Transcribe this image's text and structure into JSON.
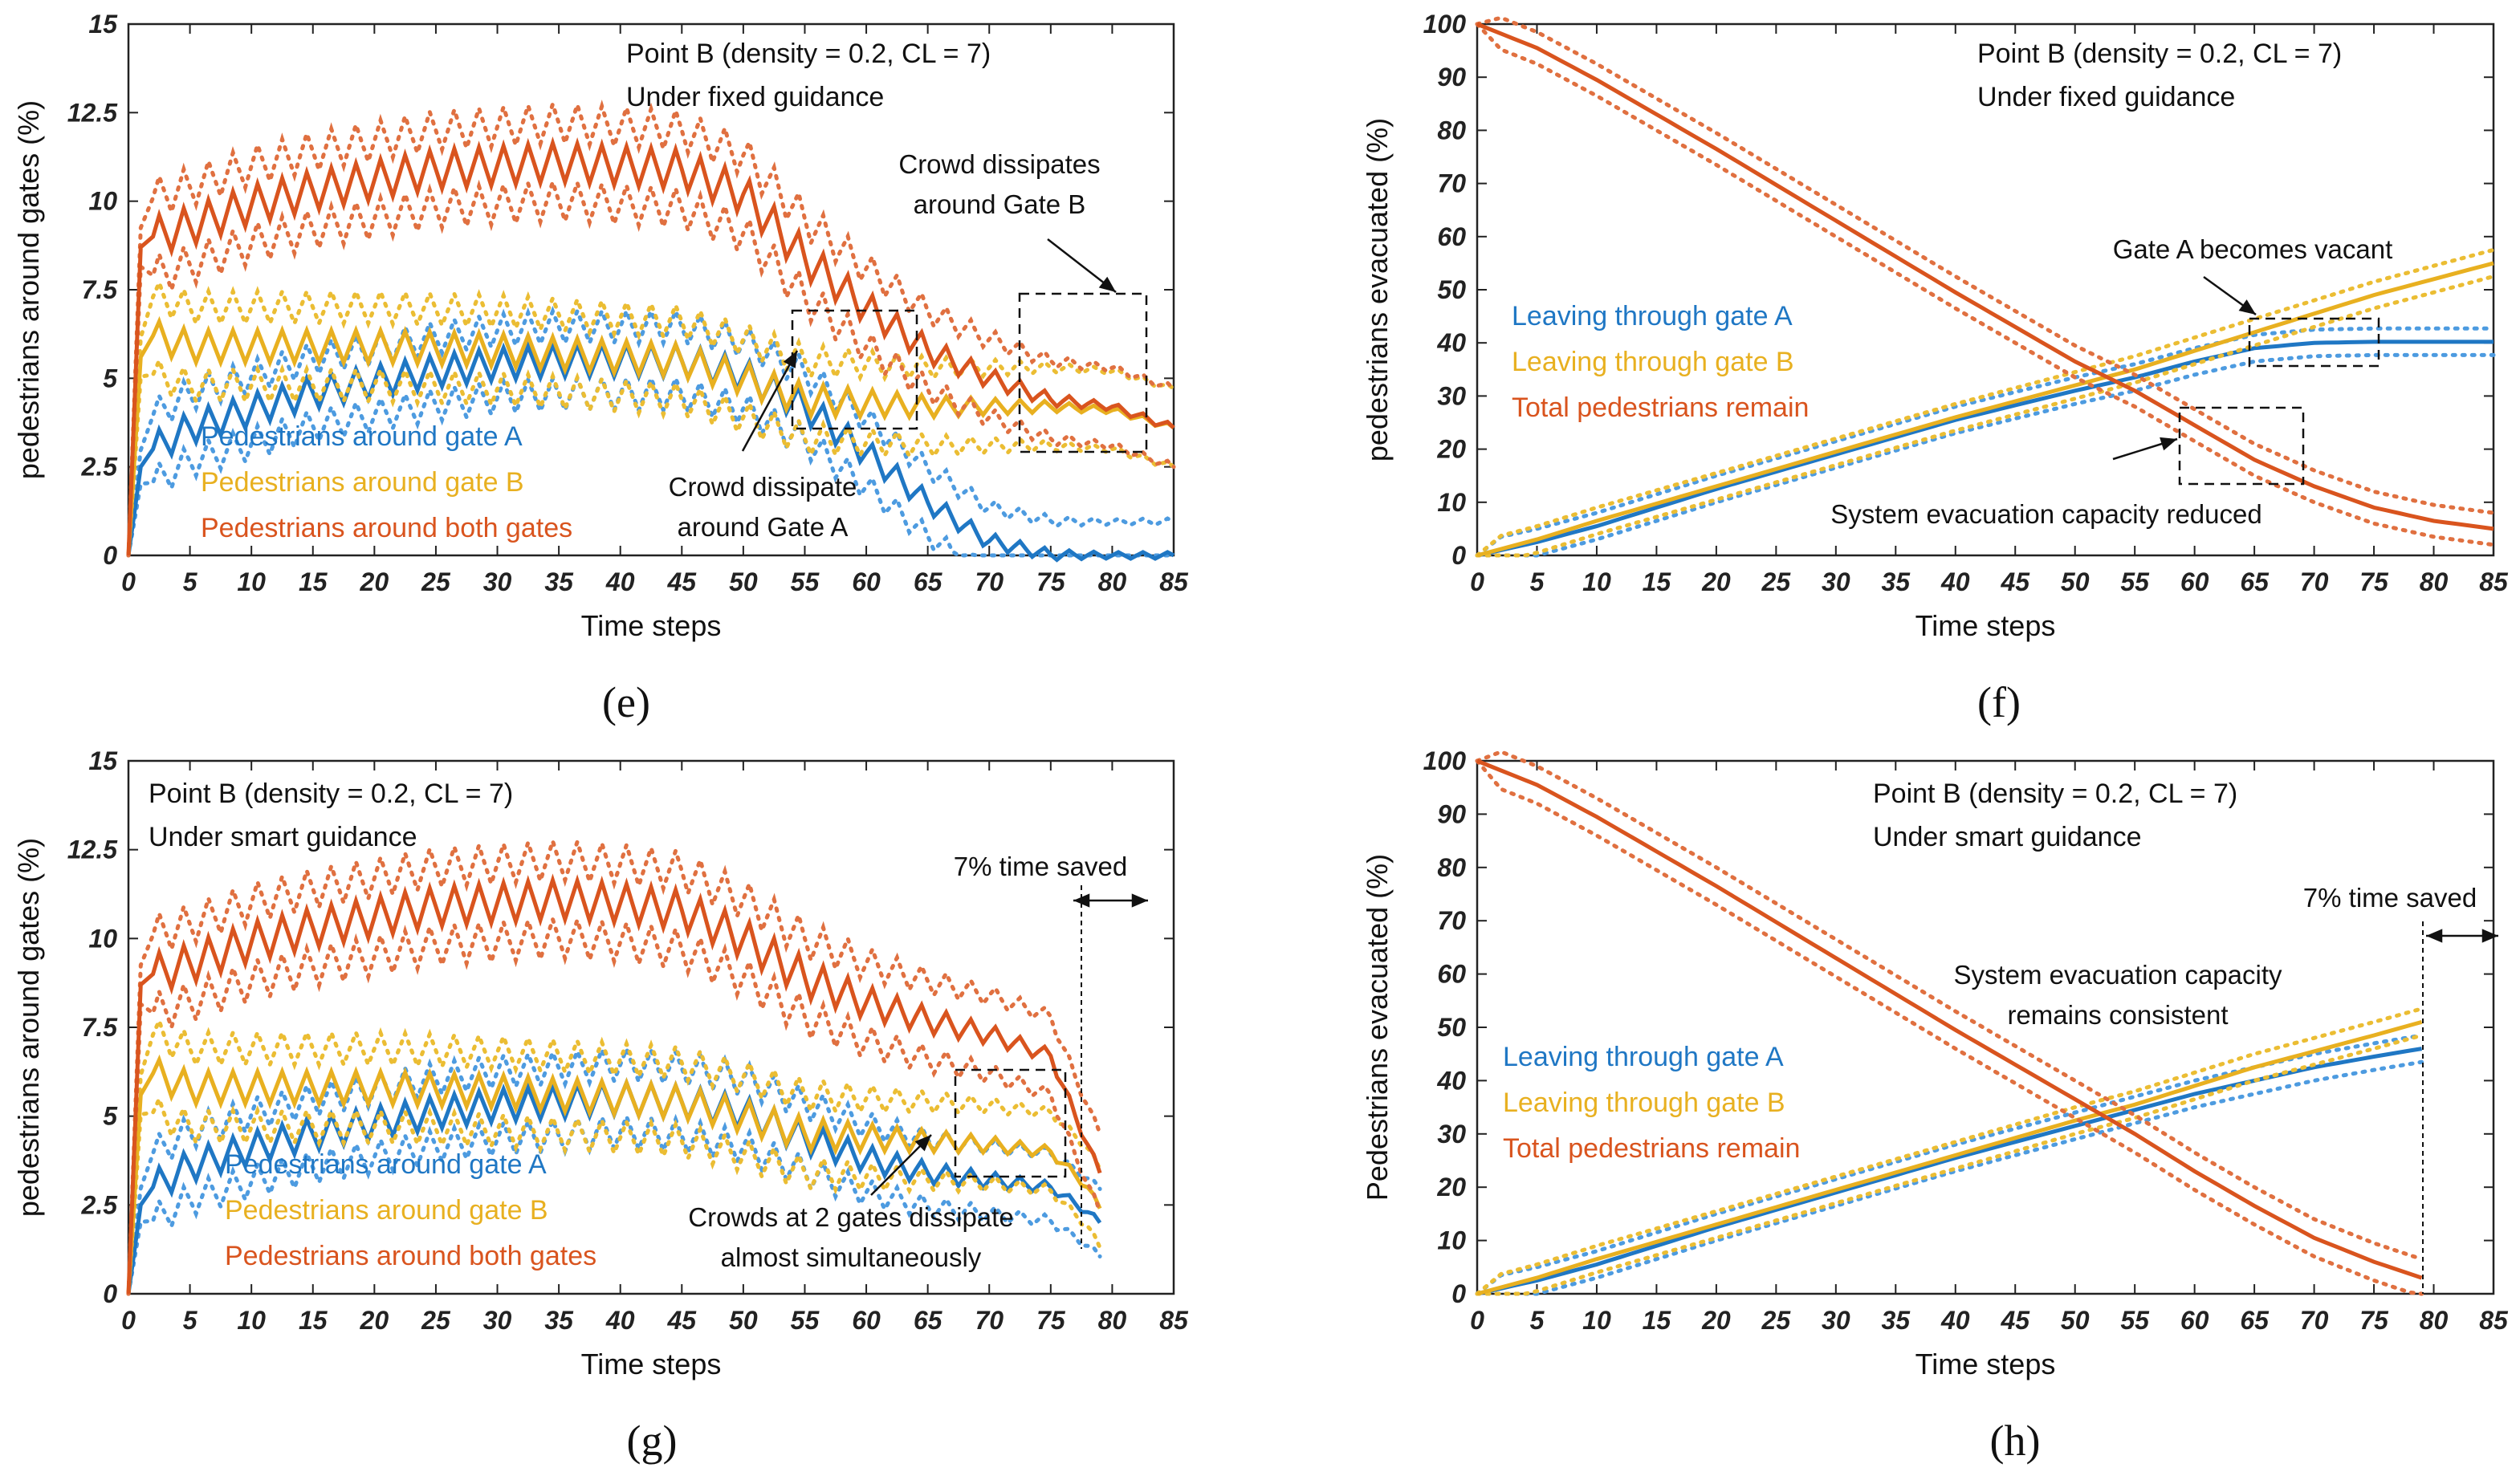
{
  "chart_data": [
    {
      "panel": "e",
      "caption": "(e)",
      "type": "line",
      "xlabel": "Time steps",
      "ylabel": "pedestrians around gates (%)",
      "xlim": [
        0,
        85
      ],
      "ylim": [
        0,
        15
      ],
      "xticks": [
        "0",
        "5",
        "10",
        "15",
        "20",
        "25",
        "30",
        "35",
        "40",
        "45",
        "50",
        "55",
        "60",
        "65",
        "70",
        "75",
        "80",
        "85"
      ],
      "yticks": [
        "0",
        "2.5",
        "5",
        "7.5",
        "10",
        "12.5",
        "15"
      ],
      "info": [
        "Point B (density = 0.2, CL = 7)",
        "Under fixed guidance"
      ],
      "legend": [
        "Pedestrians around gate A",
        "Pedestrians around gate B",
        "Pedestrians around both gates"
      ],
      "annotations": [
        {
          "lines": [
            "Crowd dissipates",
            "around Gate B"
          ]
        },
        {
          "lines": [
            "Crowd dissipate",
            "around Gate A"
          ]
        }
      ],
      "series": [
        {
          "name": "Pedestrians around gate A",
          "color": "#1f77c4",
          "bandColor": "#4d9be0",
          "x": [
            0,
            1,
            2,
            5,
            10,
            15,
            20,
            25,
            30,
            35,
            40,
            45,
            50,
            55,
            60,
            65,
            70,
            75,
            80,
            85
          ],
          "values": [
            0,
            2.5,
            3.0,
            3.6,
            4.1,
            4.6,
            4.9,
            5.2,
            5.4,
            5.5,
            5.5,
            5.5,
            5.1,
            4.2,
            2.9,
            1.5,
            0.4,
            0.02,
            0.0,
            0.0
          ],
          "band": 0.95,
          "osc": 0.45
        },
        {
          "name": "Pedestrians around gate B",
          "color": "#e8b020",
          "bandColor": "#ebbd33",
          "x": [
            0,
            1,
            2,
            5,
            10,
            20,
            30,
            40,
            45,
            50,
            55,
            60,
            65,
            70,
            75,
            80,
            85
          ],
          "values": [
            0,
            5.6,
            6.2,
            5.9,
            5.9,
            5.9,
            5.8,
            5.6,
            5.5,
            5.0,
            4.4,
            4.3,
            4.2,
            4.2,
            4.2,
            4.1,
            3.6
          ],
          "band": 1.1,
          "osc": 0.45
        },
        {
          "name": "Pedestrians around both gates",
          "color": "#d9541e",
          "bandColor": "#e07040",
          "x": [
            0,
            1,
            2,
            5,
            10,
            15,
            20,
            25,
            30,
            35,
            40,
            45,
            50,
            55,
            60,
            65,
            70,
            75,
            80,
            85
          ],
          "values": [
            0,
            8.7,
            9.0,
            9.3,
            9.9,
            10.3,
            10.6,
            10.9,
            11.0,
            11.1,
            11.0,
            10.9,
            10.2,
            8.4,
            7.0,
            5.8,
            5.0,
            4.4,
            4.2,
            3.6
          ],
          "band": 1.1,
          "osc": 0.55
        }
      ]
    },
    {
      "panel": "f",
      "caption": "(f)",
      "type": "line",
      "xlabel": "Time steps",
      "ylabel": "pedestrians evacuated (%)",
      "xlim": [
        0,
        85
      ],
      "ylim": [
        0,
        100
      ],
      "xticks": [
        "0",
        "5",
        "10",
        "15",
        "20",
        "25",
        "30",
        "35",
        "40",
        "45",
        "50",
        "55",
        "60",
        "65",
        "70",
        "75",
        "80",
        "85"
      ],
      "yticks": [
        "0",
        "10",
        "20",
        "30",
        "40",
        "50",
        "60",
        "70",
        "80",
        "90",
        "100"
      ],
      "info": [
        "Point B (density = 0.2, CL = 7)",
        "Under fixed guidance"
      ],
      "legend": [
        "Leaving through gate A",
        "Leaving through gate B",
        "Total pedestrians remain"
      ],
      "annotations": [
        {
          "lines": [
            "Gate A becomes vacant"
          ]
        },
        {
          "lines": [
            "System evacuation capacity reduced"
          ]
        }
      ],
      "series": [
        {
          "name": "Leaving through gate A",
          "color": "#1f77c4",
          "bandColor": "#4d9be0",
          "x": [
            0,
            5,
            10,
            20,
            30,
            40,
            50,
            55,
            60,
            65,
            70,
            75,
            80,
            85
          ],
          "values": [
            0,
            2.5,
            5.5,
            12.5,
            19.0,
            25.5,
            31.0,
            33.5,
            36.5,
            39.0,
            40.0,
            40.2,
            40.2,
            40.2
          ],
          "band": 2.5,
          "osc": 0
        },
        {
          "name": "Leaving through gate B",
          "color": "#e8b020",
          "bandColor": "#ebbd33",
          "x": [
            0,
            5,
            10,
            20,
            30,
            40,
            50,
            55,
            60,
            65,
            70,
            75,
            80,
            85
          ],
          "values": [
            0,
            3.0,
            6.5,
            13.0,
            19.5,
            26.0,
            32.0,
            35.0,
            38.5,
            42.0,
            45.5,
            49.0,
            52.0,
            55.0
          ],
          "band": 2.5,
          "osc": 0
        },
        {
          "name": "Total pedestrians remain",
          "color": "#d9541e",
          "bandColor": "#e07040",
          "x": [
            0,
            5,
            10,
            20,
            30,
            40,
            50,
            55,
            60,
            65,
            70,
            75,
            80,
            85
          ],
          "values": [
            100,
            95.5,
            89.5,
            76.5,
            63.0,
            49.5,
            36.5,
            31.0,
            24.5,
            18.0,
            13.0,
            9.0,
            6.5,
            5.0
          ],
          "band": 3.0,
          "osc": 0
        }
      ]
    },
    {
      "panel": "g",
      "caption": "(g)",
      "type": "line",
      "xlabel": "Time steps",
      "ylabel": "pedestrians around gates (%)",
      "xlim": [
        0,
        85
      ],
      "ylim": [
        0,
        15
      ],
      "xticks": [
        "0",
        "5",
        "10",
        "15",
        "20",
        "25",
        "30",
        "35",
        "40",
        "45",
        "50",
        "55",
        "60",
        "65",
        "70",
        "75",
        "80",
        "85"
      ],
      "yticks": [
        "0",
        "2.5",
        "5",
        "7.5",
        "10",
        "12.5",
        "15"
      ],
      "info": [
        "Point B (density = 0.2, CL = 7)",
        "Under smart guidance"
      ],
      "legend": [
        "Pedestrians around gate A",
        "Pedestrians around gate B",
        "Pedestrians around both gates"
      ],
      "annotations": [
        {
          "lines": [
            "7% time saved"
          ]
        },
        {
          "lines": [
            "Crowds at 2 gates dissipate",
            "almost simultaneously"
          ]
        }
      ],
      "series": [
        {
          "name": "Pedestrians around gate A",
          "color": "#1f77c4",
          "bandColor": "#4d9be0",
          "x": [
            0,
            1,
            2,
            5,
            10,
            15,
            20,
            25,
            30,
            35,
            40,
            45,
            50,
            55,
            60,
            65,
            70,
            75,
            78,
            79
          ],
          "values": [
            0,
            2.5,
            3.0,
            3.6,
            4.1,
            4.5,
            4.8,
            5.1,
            5.3,
            5.4,
            5.5,
            5.4,
            5.1,
            4.4,
            3.8,
            3.4,
            3.2,
            3.0,
            2.3,
            2.0
          ],
          "band": 0.95,
          "osc": 0.45
        },
        {
          "name": "Pedestrians around gate B",
          "color": "#e8b020",
          "bandColor": "#ebbd33",
          "x": [
            0,
            1,
            2,
            5,
            10,
            20,
            30,
            40,
            45,
            50,
            55,
            60,
            65,
            70,
            75,
            78,
            79
          ],
          "values": [
            0,
            5.6,
            6.2,
            5.8,
            5.8,
            5.8,
            5.7,
            5.5,
            5.4,
            5.0,
            4.5,
            4.4,
            4.3,
            4.2,
            4.0,
            3.0,
            2.4
          ],
          "band": 1.1,
          "osc": 0.45
        },
        {
          "name": "Pedestrians around both gates",
          "color": "#d9541e",
          "bandColor": "#e07040",
          "x": [
            0,
            1,
            2,
            5,
            10,
            15,
            20,
            25,
            30,
            35,
            40,
            45,
            50,
            55,
            60,
            65,
            70,
            75,
            77,
            79
          ],
          "values": [
            0,
            8.7,
            9.0,
            9.3,
            9.9,
            10.3,
            10.6,
            10.9,
            11.0,
            11.1,
            11.0,
            10.8,
            10.0,
            8.9,
            8.2,
            7.7,
            7.3,
            6.7,
            5.0,
            3.4
          ],
          "band": 1.1,
          "osc": 0.55
        }
      ]
    },
    {
      "panel": "h",
      "caption": "(h)",
      "type": "line",
      "xlabel": "Time steps",
      "ylabel": "Pedestrians evacuated (%)",
      "xlim": [
        0,
        85
      ],
      "ylim": [
        0,
        100
      ],
      "xticks": [
        "0",
        "5",
        "10",
        "15",
        "20",
        "25",
        "30",
        "35",
        "40",
        "45",
        "50",
        "55",
        "60",
        "65",
        "70",
        "75",
        "80",
        "85"
      ],
      "yticks": [
        "0",
        "10",
        "20",
        "30",
        "40",
        "50",
        "60",
        "70",
        "80",
        "90",
        "100"
      ],
      "info": [
        "Point B (density = 0.2, CL = 7)",
        "Under smart guidance"
      ],
      "legend": [
        "Leaving through gate A",
        "Leaving through gate B",
        "Total pedestrians remain"
      ],
      "annotations": [
        {
          "lines": [
            "7% time saved"
          ]
        },
        {
          "lines": [
            "System evacuation capacity",
            "remains consistent"
          ]
        }
      ],
      "series": [
        {
          "name": "Leaving through gate A",
          "color": "#1f77c4",
          "bandColor": "#4d9be0",
          "x": [
            0,
            5,
            10,
            20,
            30,
            40,
            50,
            55,
            60,
            65,
            70,
            75,
            79
          ],
          "values": [
            0,
            2.5,
            5.5,
            12.5,
            19.0,
            25.5,
            31.5,
            34.5,
            37.5,
            40.0,
            42.5,
            44.5,
            46.0
          ],
          "band": 2.5,
          "osc": 0
        },
        {
          "name": "Leaving through gate B",
          "color": "#e8b020",
          "bandColor": "#ebbd33",
          "x": [
            0,
            5,
            10,
            20,
            30,
            40,
            50,
            55,
            60,
            65,
            70,
            75,
            79
          ],
          "values": [
            0,
            3.0,
            6.5,
            13.0,
            19.5,
            26.0,
            32.5,
            35.5,
            39.0,
            42.5,
            45.5,
            48.5,
            51.0
          ],
          "band": 2.5,
          "osc": 0
        },
        {
          "name": "Total pedestrians remain",
          "color": "#d9541e",
          "bandColor": "#e07040",
          "x": [
            0,
            5,
            10,
            20,
            30,
            40,
            50,
            55,
            60,
            65,
            70,
            75,
            79
          ],
          "values": [
            100,
            95.5,
            89.5,
            76.5,
            63.0,
            49.5,
            36.5,
            30.0,
            23.0,
            16.5,
            10.5,
            6.0,
            3.0
          ],
          "band": 3.5,
          "osc": 0
        }
      ]
    }
  ]
}
